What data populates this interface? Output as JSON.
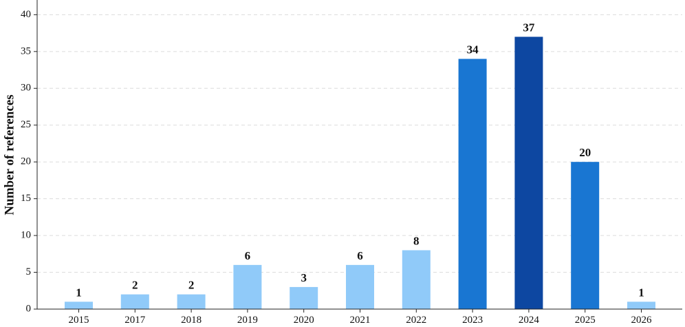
{
  "chart_data": {
    "type": "bar",
    "title": "",
    "xlabel": "",
    "ylabel": "Number of references",
    "categories": [
      "2015",
      "2017",
      "2018",
      "2019",
      "2020",
      "2021",
      "2022",
      "2023",
      "2024",
      "2025",
      "2026"
    ],
    "values": [
      1,
      2,
      2,
      6,
      3,
      6,
      8,
      34,
      37,
      20,
      1
    ],
    "data_labels": [
      "1",
      "2",
      "2",
      "6",
      "3",
      "6",
      "8",
      "34",
      "37",
      "20",
      "1"
    ],
    "ylim": [
      0,
      42
    ],
    "yticks": [
      0,
      5,
      10,
      15,
      20,
      25,
      30,
      35,
      40
    ],
    "ytick_labels": [
      "0",
      "5",
      "10",
      "15",
      "20",
      "25",
      "30",
      "35",
      "40"
    ],
    "grid": "horizontal dashed",
    "bar_colors": [
      "#90caf9",
      "#90caf9",
      "#90caf9",
      "#90caf9",
      "#90caf9",
      "#90caf9",
      "#90caf9",
      "#1976d2",
      "#0d47a1",
      "#1976d2",
      "#90caf9"
    ]
  }
}
